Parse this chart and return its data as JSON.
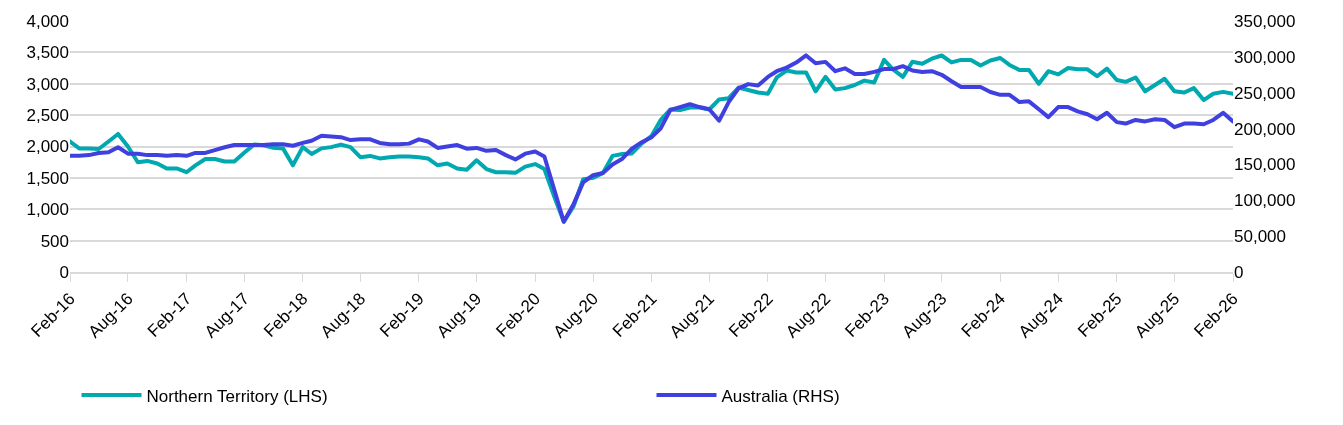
{
  "chart_data": {
    "type": "line",
    "x": [
      "2016-02",
      "2016-03",
      "2016-04",
      "2016-05",
      "2016-06",
      "2016-07",
      "2016-08",
      "2016-09",
      "2016-10",
      "2016-11",
      "2016-12",
      "2017-01",
      "2017-02",
      "2017-03",
      "2017-04",
      "2017-05",
      "2017-06",
      "2017-07",
      "2017-08",
      "2017-09",
      "2017-10",
      "2017-11",
      "2017-12",
      "2018-01",
      "2018-02",
      "2018-03",
      "2018-04",
      "2018-05",
      "2018-06",
      "2018-07",
      "2018-08",
      "2018-09",
      "2018-10",
      "2018-11",
      "2018-12",
      "2019-01",
      "2019-02",
      "2019-03",
      "2019-04",
      "2019-05",
      "2019-06",
      "2019-07",
      "2019-08",
      "2019-09",
      "2019-10",
      "2019-11",
      "2019-12",
      "2020-01",
      "2020-02",
      "2020-03",
      "2020-04",
      "2020-05",
      "2020-06",
      "2020-07",
      "2020-08",
      "2020-09",
      "2020-10",
      "2020-11",
      "2020-12",
      "2021-01",
      "2021-02",
      "2021-03",
      "2021-04",
      "2021-05",
      "2021-06",
      "2021-07",
      "2021-08",
      "2021-09",
      "2021-10",
      "2021-11",
      "2021-12",
      "2022-01",
      "2022-02",
      "2022-03",
      "2022-04",
      "2022-05",
      "2022-06",
      "2022-07",
      "2022-08",
      "2022-09",
      "2022-10",
      "2022-11",
      "2022-12",
      "2023-01",
      "2023-02",
      "2023-03",
      "2023-04",
      "2023-05",
      "2023-06",
      "2023-07",
      "2023-08",
      "2023-09",
      "2023-10",
      "2023-11",
      "2023-12",
      "2024-01",
      "2024-02",
      "2024-03",
      "2024-04",
      "2024-05",
      "2024-06",
      "2024-07",
      "2024-08",
      "2024-09",
      "2024-10",
      "2024-11",
      "2024-12",
      "2025-01",
      "2025-02",
      "2025-03",
      "2025-04",
      "2025-05",
      "2025-06",
      "2025-07",
      "2025-08",
      "2025-09",
      "2025-10",
      "2025-11",
      "2025-12",
      "2026-01",
      "2026-02"
    ],
    "series": [
      {
        "name": "Northern Territory (LHS)",
        "color": "#00a8b0",
        "values": [
          2080,
          1970,
          1970,
          1960,
          2080,
          2200,
          2000,
          1750,
          1770,
          1730,
          1650,
          1650,
          1590,
          1700,
          1800,
          1800,
          1760,
          1760,
          1900,
          2030,
          2020,
          1980,
          1970,
          1700,
          1990,
          1880,
          1970,
          1990,
          2030,
          1990,
          1830,
          1850,
          1810,
          1830,
          1840,
          1840,
          1830,
          1810,
          1700,
          1730,
          1650,
          1630,
          1780,
          1640,
          1590,
          1590,
          1580,
          1680,
          1720,
          1640,
          1200,
          800,
          1050,
          1480,
          1500,
          1580,
          1850,
          1880,
          1890,
          2050,
          2170,
          2420,
          2590,
          2580,
          2620,
          2620,
          2590,
          2750,
          2770,
          2940,
          2900,
          2860,
          2840,
          3100,
          3210,
          3180,
          3180,
          2880,
          3110,
          2910,
          2930,
          2980,
          3050,
          3020,
          3380,
          3230,
          3110,
          3350,
          3320,
          3400,
          3450,
          3340,
          3380,
          3380,
          3290,
          3370,
          3410,
          3300,
          3220,
          3220,
          3000,
          3200,
          3150,
          3250,
          3230,
          3230,
          3120,
          3240,
          3060,
          3030,
          3100,
          2880,
          2980,
          3080,
          2880,
          2860,
          2930,
          2740,
          2840,
          2870,
          2840
        ]
      },
      {
        "name": "Australia (RHS)",
        "color": "#4040e0",
        "axis": "y2",
        "values": [
          162000,
          162000,
          163000,
          166000,
          167000,
          174000,
          165000,
          165000,
          163000,
          163000,
          162000,
          163000,
          162000,
          166000,
          166000,
          170000,
          174000,
          177000,
          177000,
          177000,
          177000,
          178000,
          178000,
          176000,
          180000,
          183000,
          190000,
          189000,
          188000,
          184000,
          185000,
          185000,
          180000,
          178000,
          178000,
          179000,
          185000,
          182000,
          173000,
          175000,
          177000,
          172000,
          173000,
          169000,
          170000,
          163000,
          157000,
          165000,
          168000,
          161000,
          115000,
          70000,
          95000,
          125000,
          135000,
          138000,
          150000,
          158000,
          172000,
          181000,
          188000,
          200000,
          226000,
          230000,
          234000,
          230000,
          227000,
          211000,
          237000,
          256000,
          262000,
          260000,
          272000,
          280000,
          285000,
          292000,
          302000,
          291000,
          293000,
          280000,
          284000,
          276000,
          276000,
          279000,
          283000,
          283000,
          287000,
          281000,
          279000,
          280000,
          275000,
          266000,
          258000,
          258000,
          258000,
          251000,
          247000,
          247000,
          237000,
          238000,
          227000,
          216000,
          230000,
          230000,
          224000,
          220000,
          213000,
          222000,
          209000,
          207000,
          212000,
          210000,
          213000,
          212000,
          202000,
          207000,
          207000,
          206000,
          212000,
          222000,
          210000
        ]
      }
    ],
    "xlim": [
      "2016-02",
      "2026-02"
    ],
    "xticks": [
      {
        "value": "2016-02",
        "label": "Feb-16"
      },
      {
        "value": "2016-08",
        "label": "Aug-16"
      },
      {
        "value": "2017-02",
        "label": "Feb-17"
      },
      {
        "value": "2017-08",
        "label": "Aug-17"
      },
      {
        "value": "2018-02",
        "label": "Feb-18"
      },
      {
        "value": "2018-08",
        "label": "Aug-18"
      },
      {
        "value": "2019-02",
        "label": "Feb-19"
      },
      {
        "value": "2019-08",
        "label": "Aug-19"
      },
      {
        "value": "2020-02",
        "label": "Feb-20"
      },
      {
        "value": "2020-08",
        "label": "Aug-20"
      },
      {
        "value": "2021-02",
        "label": "Feb-21"
      },
      {
        "value": "2021-08",
        "label": "Aug-21"
      },
      {
        "value": "2022-02",
        "label": "Feb-22"
      },
      {
        "value": "2022-08",
        "label": "Aug-22"
      },
      {
        "value": "2023-02",
        "label": "Feb-23"
      },
      {
        "value": "2023-08",
        "label": "Aug-23"
      },
      {
        "value": "2024-02",
        "label": "Feb-24"
      },
      {
        "value": "2024-08",
        "label": "Aug-24"
      },
      {
        "value": "2025-02",
        "label": "Feb-25"
      },
      {
        "value": "2025-08",
        "label": "Aug-25"
      },
      {
        "value": "2026-02",
        "label": "Feb-26"
      }
    ],
    "ylim": [
      0,
      4000
    ],
    "yticks": [
      {
        "value": 0,
        "label": "0"
      },
      {
        "value": 500,
        "label": "500"
      },
      {
        "value": 1000,
        "label": "1,000"
      },
      {
        "value": 1500,
        "label": "1,500"
      },
      {
        "value": 2000,
        "label": "2,000"
      },
      {
        "value": 2500,
        "label": "2,500"
      },
      {
        "value": 3000,
        "label": "3,000"
      },
      {
        "value": 3500,
        "label": "3,500"
      },
      {
        "value": 4000,
        "label": "4,000"
      }
    ],
    "y2lim": [
      0,
      350000
    ],
    "y2ticks": [
      {
        "value": 0,
        "label": "0"
      },
      {
        "value": 50000,
        "label": "50,000"
      },
      {
        "value": 100000,
        "label": "100,000"
      },
      {
        "value": 150000,
        "label": "150,000"
      },
      {
        "value": 200000,
        "label": "200,000"
      },
      {
        "value": 250000,
        "label": "250,000"
      },
      {
        "value": 300000,
        "label": "300,000"
      },
      {
        "value": 350000,
        "label": "350,000"
      }
    ],
    "grid": "y",
    "legend": "bottom",
    "marker": "none",
    "line_style": "solid"
  }
}
